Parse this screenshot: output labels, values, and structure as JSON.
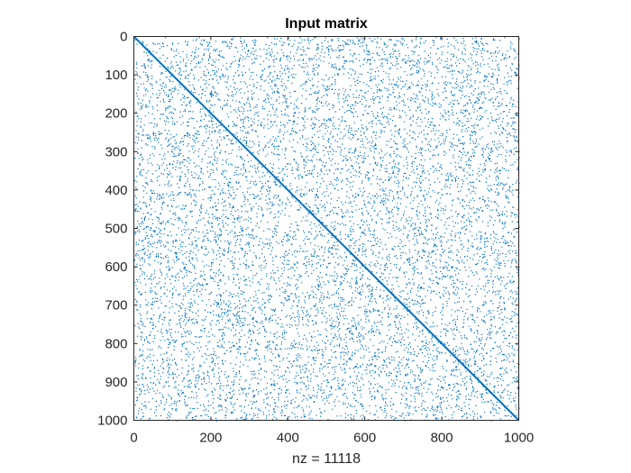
{
  "chart_data": {
    "type": "scatter",
    "title": "Input matrix",
    "xlabel": "nz = 11118",
    "ylabel": "",
    "xlim": [
      0,
      1000
    ],
    "ylim": [
      0,
      1000
    ],
    "y_reversed": true,
    "x_ticks": [
      0,
      200,
      400,
      600,
      800,
      1000
    ],
    "y_ticks": [
      0,
      100,
      200,
      300,
      400,
      500,
      600,
      700,
      800,
      900,
      1000
    ],
    "grid": false,
    "legend": "none",
    "marker_color": "#0072BD",
    "matrix_size": [
      1000,
      1000
    ],
    "nonzeros": 11118,
    "diagonal": {
      "from": [
        1,
        1
      ],
      "to": [
        1000,
        1000
      ]
    },
    "off_diagonal_pattern": "uniform random scatter"
  }
}
